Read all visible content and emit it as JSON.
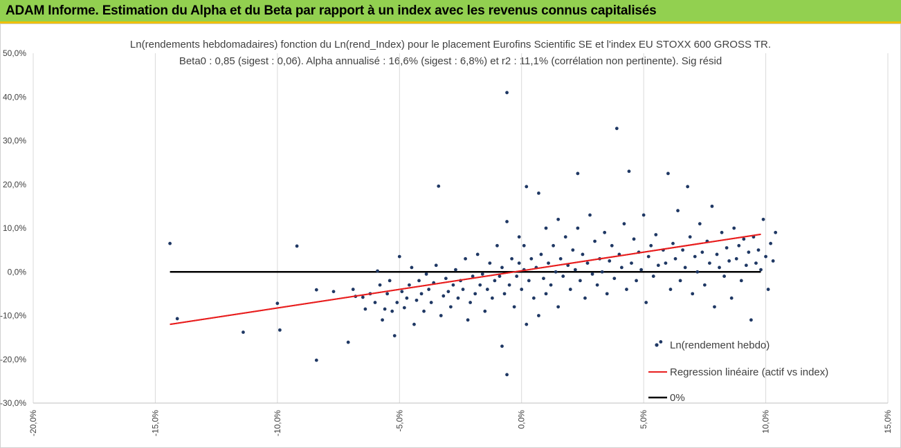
{
  "header": {
    "title": "ADAM Informe. Estimation du Alpha et du Beta par rapport à un index avec les revenus connus capitalisés"
  },
  "chart_data": {
    "type": "scatter",
    "title": "Ln(rendements hebdomadaires) fonction du Ln(rend_Index) pour le placement Eurofins Scientific SE et l'index EU STOXX 600 GROSS TR.",
    "subtitle": "Beta0 : 0,85 (sigest : 0,06). Alpha annualisé : 16,6% (sigest : 6,8%) et r2 : 11,1% (corrélation non pertinente). Sig résid",
    "xlim": [
      -0.2,
      0.15
    ],
    "ylim": [
      -0.3,
      0.5
    ],
    "x_ticks": [
      "-20,0%",
      "-15,0%",
      "-10,0%",
      "-5,0%",
      "0,0%",
      "5,0%",
      "10,0%",
      "15,0%"
    ],
    "y_ticks": [
      "-30,0%",
      "-20,0%",
      "-10,0%",
      "0,0%",
      "10,0%",
      "20,0%",
      "30,0%",
      "40,0%",
      "50,0%"
    ],
    "grid": "vertical",
    "legend_position": "bottom-right",
    "series": [
      {
        "name": "Ln(rendement hebdo)",
        "kind": "scatter",
        "color": "#1f3864",
        "points": [
          [
            -0.144,
            0.065
          ],
          [
            -0.141,
            -0.107
          ],
          [
            -0.114,
            -0.138
          ],
          [
            -0.1,
            -0.072
          ],
          [
            -0.099,
            -0.133
          ],
          [
            -0.092,
            0.059
          ],
          [
            -0.084,
            -0.041
          ],
          [
            -0.084,
            -0.202
          ],
          [
            -0.077,
            -0.045
          ],
          [
            -0.071,
            -0.161
          ],
          [
            -0.069,
            -0.04
          ],
          [
            -0.068,
            -0.056
          ],
          [
            -0.065,
            -0.058
          ],
          [
            -0.064,
            -0.085
          ],
          [
            -0.062,
            -0.05
          ],
          [
            -0.06,
            -0.07
          ],
          [
            -0.059,
            0.002
          ],
          [
            -0.058,
            -0.03
          ],
          [
            -0.057,
            -0.11
          ],
          [
            -0.056,
            -0.085
          ],
          [
            -0.055,
            -0.05
          ],
          [
            -0.054,
            -0.02
          ],
          [
            -0.053,
            -0.09
          ],
          [
            -0.052,
            -0.146
          ],
          [
            -0.051,
            -0.07
          ],
          [
            -0.05,
            0.035
          ],
          [
            -0.049,
            -0.045
          ],
          [
            -0.048,
            -0.082
          ],
          [
            -0.047,
            -0.06
          ],
          [
            -0.046,
            -0.03
          ],
          [
            -0.045,
            0.01
          ],
          [
            -0.044,
            -0.12
          ],
          [
            -0.043,
            -0.065
          ],
          [
            -0.042,
            -0.02
          ],
          [
            -0.041,
            -0.05
          ],
          [
            -0.04,
            -0.09
          ],
          [
            -0.039,
            -0.005
          ],
          [
            -0.038,
            -0.04
          ],
          [
            -0.037,
            -0.07
          ],
          [
            -0.036,
            -0.025
          ],
          [
            -0.035,
            0.015
          ],
          [
            -0.034,
            0.196
          ],
          [
            -0.033,
            -0.1
          ],
          [
            -0.032,
            -0.055
          ],
          [
            -0.031,
            -0.015
          ],
          [
            -0.03,
            -0.045
          ],
          [
            -0.029,
            -0.08
          ],
          [
            -0.028,
            -0.03
          ],
          [
            -0.027,
            0.005
          ],
          [
            -0.026,
            -0.06
          ],
          [
            -0.025,
            -0.02
          ],
          [
            -0.024,
            -0.04
          ],
          [
            -0.023,
            0.03
          ],
          [
            -0.022,
            -0.11
          ],
          [
            -0.021,
            -0.07
          ],
          [
            -0.02,
            -0.01
          ],
          [
            -0.019,
            -0.05
          ],
          [
            -0.018,
            0.04
          ],
          [
            -0.017,
            -0.03
          ],
          [
            -0.016,
            -0.005
          ],
          [
            -0.015,
            -0.09
          ],
          [
            -0.014,
            -0.04
          ],
          [
            -0.013,
            0.02
          ],
          [
            -0.012,
            -0.06
          ],
          [
            -0.011,
            -0.02
          ],
          [
            -0.01,
            0.06
          ],
          [
            -0.009,
            -0.01
          ],
          [
            -0.008,
            -0.17
          ],
          [
            -0.008,
            0.01
          ],
          [
            -0.007,
            -0.05
          ],
          [
            -0.006,
            0.41
          ],
          [
            -0.006,
            0.115
          ],
          [
            -0.006,
            -0.235
          ],
          [
            -0.005,
            -0.03
          ],
          [
            -0.004,
            0.03
          ],
          [
            -0.003,
            -0.08
          ],
          [
            -0.002,
            -0.01
          ],
          [
            -0.001,
            0.08
          ],
          [
            -0.001,
            0.02
          ],
          [
            0.0,
            -0.04
          ],
          [
            0.001,
            0.005
          ],
          [
            0.001,
            0.06
          ],
          [
            0.002,
            0.195
          ],
          [
            0.002,
            -0.12
          ],
          [
            0.003,
            -0.02
          ],
          [
            0.004,
            0.03
          ],
          [
            0.005,
            -0.06
          ],
          [
            0.006,
            0.01
          ],
          [
            0.007,
            0.18
          ],
          [
            0.007,
            -0.1
          ],
          [
            0.008,
            0.04
          ],
          [
            0.009,
            -0.015
          ],
          [
            0.01,
            0.1
          ],
          [
            0.01,
            -0.05
          ],
          [
            0.011,
            0.02
          ],
          [
            0.012,
            -0.03
          ],
          [
            0.013,
            0.06
          ],
          [
            0.014,
            0.0
          ],
          [
            0.015,
            0.12
          ],
          [
            0.015,
            -0.08
          ],
          [
            0.016,
            0.03
          ],
          [
            0.017,
            -0.01
          ],
          [
            0.018,
            0.08
          ],
          [
            0.019,
            0.015
          ],
          [
            0.02,
            -0.04
          ],
          [
            0.021,
            0.05
          ],
          [
            0.022,
            0.005
          ],
          [
            0.023,
            0.225
          ],
          [
            0.023,
            0.1
          ],
          [
            0.024,
            -0.02
          ],
          [
            0.025,
            0.04
          ],
          [
            0.026,
            -0.06
          ],
          [
            0.027,
            0.02
          ],
          [
            0.028,
            0.13
          ],
          [
            0.029,
            -0.005
          ],
          [
            0.03,
            0.07
          ],
          [
            0.031,
            -0.03
          ],
          [
            0.032,
            0.03
          ],
          [
            0.033,
            0.0
          ],
          [
            0.034,
            0.09
          ],
          [
            0.035,
            -0.05
          ],
          [
            0.036,
            0.025
          ],
          [
            0.037,
            0.06
          ],
          [
            0.038,
            -0.015
          ],
          [
            0.039,
            0.328
          ],
          [
            0.04,
            0.04
          ],
          [
            0.041,
            0.01
          ],
          [
            0.042,
            0.11
          ],
          [
            0.043,
            -0.04
          ],
          [
            0.044,
            0.23
          ],
          [
            0.045,
            0.02
          ],
          [
            0.046,
            0.075
          ],
          [
            0.047,
            -0.02
          ],
          [
            0.048,
            0.045
          ],
          [
            0.049,
            0.005
          ],
          [
            0.05,
            0.13
          ],
          [
            0.051,
            -0.07
          ],
          [
            0.052,
            0.035
          ],
          [
            0.053,
            0.06
          ],
          [
            0.054,
            -0.01
          ],
          [
            0.055,
            0.085
          ],
          [
            0.056,
            0.015
          ],
          [
            0.057,
            -0.16
          ],
          [
            0.058,
            0.05
          ],
          [
            0.059,
            0.02
          ],
          [
            0.06,
            0.225
          ],
          [
            0.061,
            -0.04
          ],
          [
            0.062,
            0.065
          ],
          [
            0.063,
            0.03
          ],
          [
            0.064,
            0.14
          ],
          [
            0.065,
            -0.02
          ],
          [
            0.066,
            0.05
          ],
          [
            0.067,
            0.01
          ],
          [
            0.068,
            0.195
          ],
          [
            0.069,
            0.08
          ],
          [
            0.07,
            -0.05
          ],
          [
            0.071,
            0.035
          ],
          [
            0.072,
            0.0
          ],
          [
            0.073,
            0.11
          ],
          [
            0.074,
            0.045
          ],
          [
            0.075,
            -0.03
          ],
          [
            0.076,
            0.07
          ],
          [
            0.077,
            0.02
          ],
          [
            0.078,
            0.15
          ],
          [
            0.079,
            -0.08
          ],
          [
            0.08,
            0.04
          ],
          [
            0.081,
            0.01
          ],
          [
            0.082,
            0.09
          ],
          [
            0.083,
            -0.01
          ],
          [
            0.084,
            0.055
          ],
          [
            0.085,
            0.025
          ],
          [
            0.086,
            -0.06
          ],
          [
            0.087,
            0.1
          ],
          [
            0.088,
            0.03
          ],
          [
            0.089,
            0.06
          ],
          [
            0.09,
            -0.02
          ],
          [
            0.091,
            0.075
          ],
          [
            0.092,
            0.015
          ],
          [
            0.093,
            0.045
          ],
          [
            0.094,
            -0.11
          ],
          [
            0.095,
            0.08
          ],
          [
            0.096,
            0.02
          ],
          [
            0.097,
            0.05
          ],
          [
            0.098,
            0.005
          ],
          [
            0.099,
            0.12
          ],
          [
            0.1,
            0.035
          ],
          [
            0.101,
            -0.04
          ],
          [
            0.102,
            0.065
          ],
          [
            0.103,
            0.025
          ],
          [
            0.104,
            0.09
          ]
        ]
      },
      {
        "name": "Regression linéaire (actif vs index)",
        "kind": "line",
        "color": "#e81e1e",
        "points": [
          [
            -0.144,
            -0.12
          ],
          [
            0.098,
            0.086
          ]
        ]
      },
      {
        "name": "0%",
        "kind": "line",
        "color": "#000000",
        "points": [
          [
            -0.144,
            0.0
          ],
          [
            0.098,
            0.0
          ]
        ]
      }
    ]
  }
}
